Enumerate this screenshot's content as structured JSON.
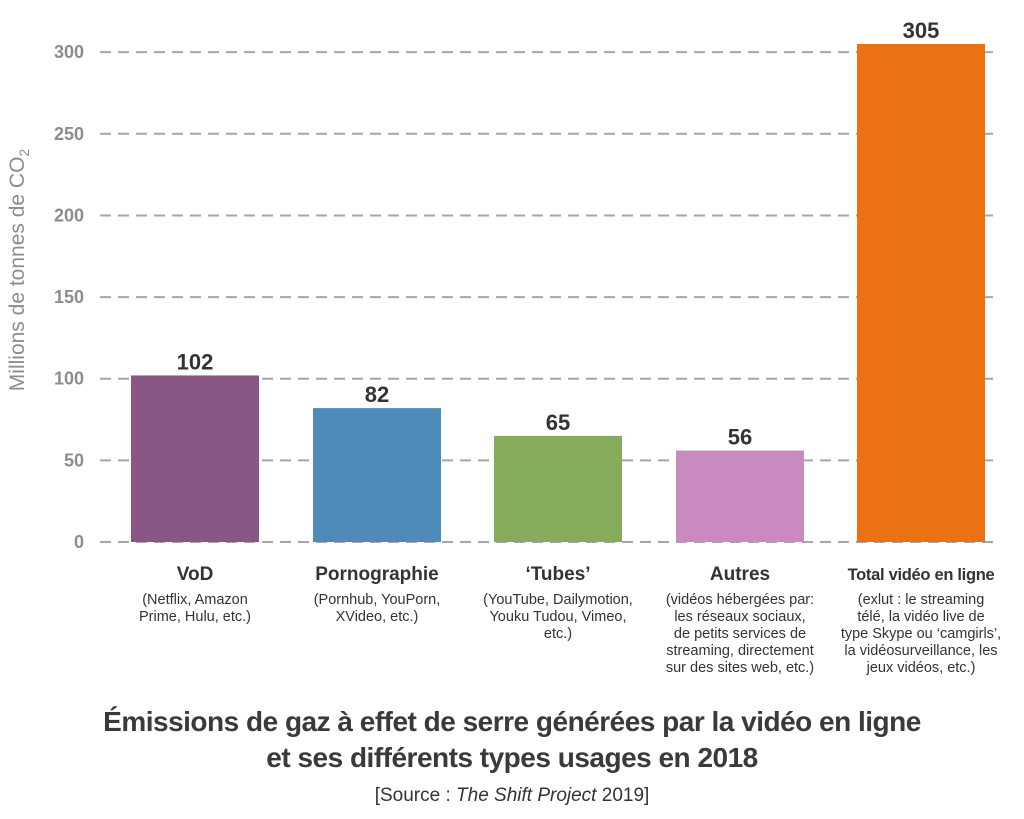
{
  "chart_data": {
    "type": "bar",
    "categories": [
      "VoD",
      "Pornographie",
      "‘Tubes’",
      "Autres",
      "Total vidéo en ligne"
    ],
    "category_descriptions": [
      [
        "(Netflix, Amazon",
        "Prime, Hulu, etc.)"
      ],
      [
        "(Pornhub, YouPorn,",
        "XVideo, etc.)"
      ],
      [
        "(YouTube, Dailymotion,",
        "Youku Tudou, Vimeo,",
        "etc.)"
      ],
      [
        "(vidéos hébergées par:",
        "les réseaux sociaux,",
        "de petits services de",
        "streaming, directement",
        "sur des sites web, etc.)"
      ],
      [
        "(exlut : le streaming",
        "télé, la vidéo live de",
        "type Skype ou ‘camgirls’,",
        "la vidéosurveillance, les",
        "jeux vidéos, etc.)"
      ]
    ],
    "values": [
      102,
      82,
      65,
      56,
      305
    ],
    "data_labels": [
      "102",
      "82",
      "65",
      "56",
      "305"
    ],
    "colors": [
      "#8a5683",
      "#4e8bb8",
      "#86ab5b",
      "#c98bbf",
      "#ec7014"
    ],
    "ylabel_main": "Millions de tonnes de CO",
    "ylabel_sub": "2",
    "ylim": [
      0,
      305
    ],
    "yticks": [
      0,
      50,
      100,
      150,
      200,
      250,
      300
    ],
    "grid": true,
    "grid_style": "dashed"
  },
  "title_line1": "Émissions de gaz à effet de serre générées par la vidéo en ligne",
  "title_line2": "et ses différents types usages en 2018",
  "source": {
    "prefix": "[Source : ",
    "name": "The Shift Project",
    "suffix": " 2019]"
  }
}
